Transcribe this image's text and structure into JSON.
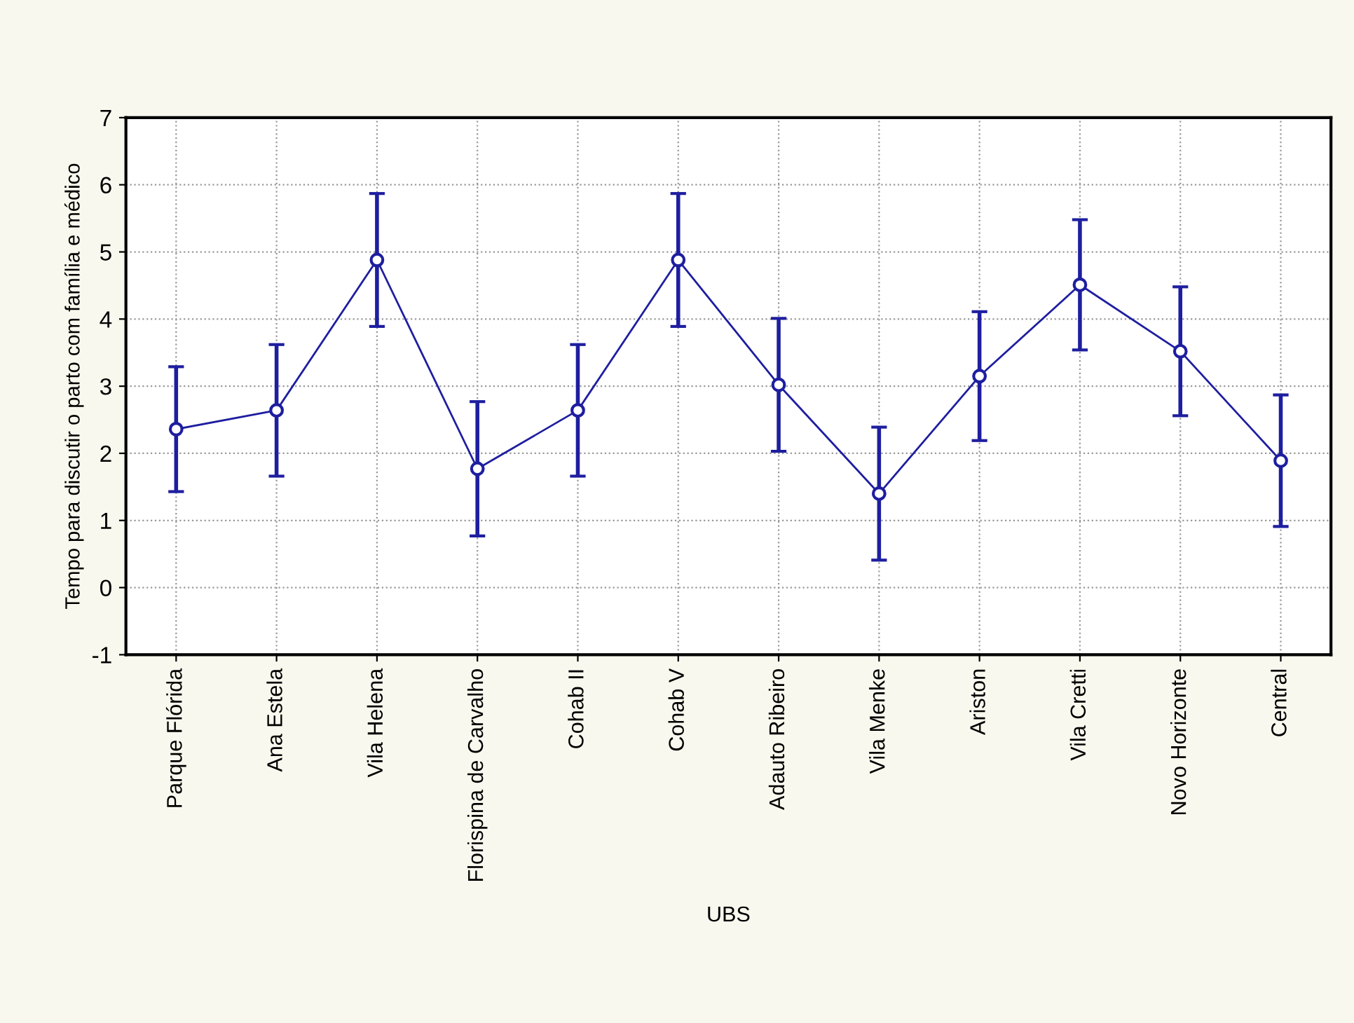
{
  "chart_data": {
    "type": "line",
    "xlabel": "UBS",
    "ylabel": "Tempo para discutir o parto com família e médico",
    "categories": [
      "Parque Flórida",
      "Ana Estela",
      "Vila Helena",
      "Florispina de Carvalho",
      "Cohab II",
      "Cohab V",
      "Adauto Ribeiro",
      "Vila Menke",
      "Ariston",
      "Vila Cretti",
      "Novo Horizonte",
      "Central"
    ],
    "values": [
      2.36,
      2.64,
      4.88,
      1.77,
      2.64,
      4.88,
      3.02,
      1.4,
      3.15,
      4.51,
      3.52,
      1.89
    ],
    "errors": [
      0.93,
      0.98,
      0.99,
      1.0,
      0.98,
      0.99,
      0.99,
      0.99,
      0.96,
      0.97,
      0.96,
      0.98
    ],
    "color": "#1e1ea0",
    "marker": "circle",
    "line_style": "solid",
    "ylim": [
      -1,
      7
    ],
    "yticks": [
      -1,
      0,
      1,
      2,
      3,
      4,
      5,
      6,
      7
    ],
    "grid": true
  }
}
